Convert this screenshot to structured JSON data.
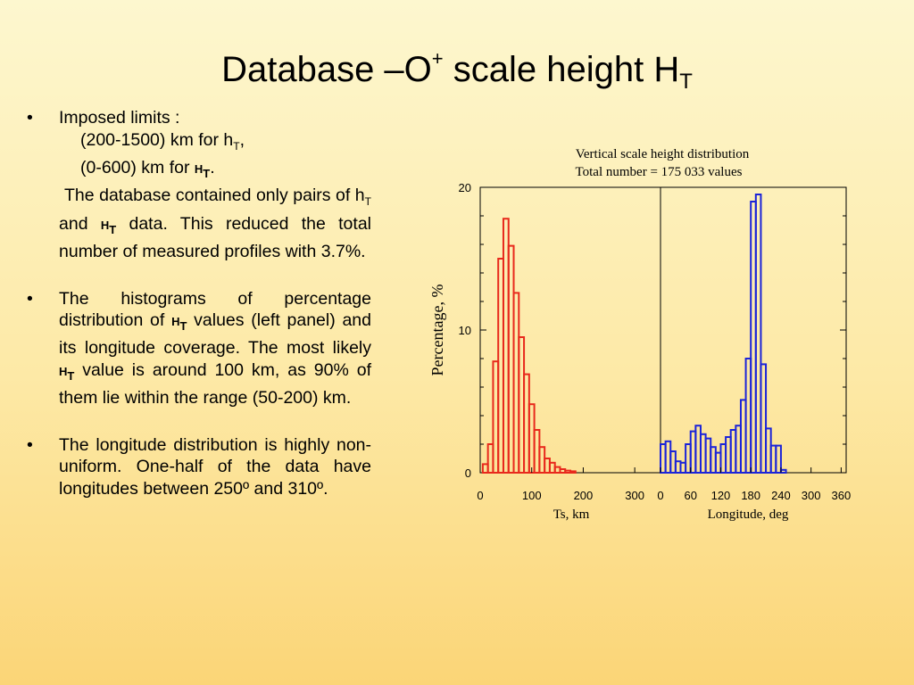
{
  "slide": {
    "title_main": "Database –O",
    "title_sup": "+",
    "title_rest": " scale height H",
    "title_sub": "T"
  },
  "bullets": {
    "b1_label": "Imposed limits :",
    "b1_l1a": "(200-1500) km for h",
    "b1_l1sub": "T",
    "b1_l1b": ",",
    "b1_l2a": "(0-600) km for ",
    "b1_l2b": "H",
    "b1_l2sub": "T",
    "b1_l2c": ".",
    "b1_p_a": "The database contained only pairs of h",
    "b1_p_sub1": "T",
    "b1_p_b": " and ",
    "b1_p_c": "H",
    "b1_p_sub2": "T",
    "b1_p_d": " data. This reduced the total number of measured profiles with 3.7%.",
    "b2_a": "The histograms of percentage distribution of ",
    "b2_b": "H",
    "b2_sub1": "T",
    "b2_c": " values (left panel) and its longitude coverage. The most likely ",
    "b2_d": "H",
    "b2_sub2": "T",
    "b2_e": " value is around 100 km, as 90% of them lie within the range (50-200) km.",
    "b3": "The longitude distribution is highly non-uniform. One-half of the data have longitudes between 250º and 310º.",
    "bullet_char": "•"
  },
  "chart_data": {
    "type": "bar",
    "title": "Vertical scale height distribution",
    "subtitle": "Total number = 175 033 values",
    "ylabel": "Percentage, %",
    "ylim": [
      0,
      20
    ],
    "yticks": [
      0,
      10,
      20
    ],
    "left_color": "#e8291c",
    "right_color": "#1c24d8",
    "panels": [
      {
        "name": "Ts",
        "xlabel": "Ts, km",
        "xlim": [
          0,
          350
        ],
        "xticks": [
          0,
          100,
          200,
          300
        ],
        "bin_width": 10,
        "bin_starts": [
          5,
          15,
          25,
          35,
          45,
          55,
          65,
          75,
          85,
          95,
          105,
          115,
          125,
          135,
          145,
          155,
          165,
          175,
          185,
          195,
          205,
          215,
          225,
          235,
          245,
          255,
          265,
          275,
          285,
          295,
          305,
          315,
          325
        ],
        "values": [
          0.6,
          2.0,
          7.8,
          15.0,
          17.8,
          15.9,
          12.6,
          9.5,
          6.9,
          4.8,
          3.0,
          1.8,
          1.0,
          0.7,
          0.4,
          0.25,
          0.15,
          0.1,
          0,
          0,
          0,
          0,
          0,
          0,
          0,
          0,
          0,
          0,
          0,
          0,
          0,
          0,
          0
        ]
      },
      {
        "name": "Longitude",
        "xlabel": "Longitude, deg",
        "xlim": [
          0,
          370
        ],
        "xticks": [
          0,
          60,
          120,
          180,
          240,
          300,
          360
        ],
        "bin_width": 10,
        "bin_starts": [
          0,
          10,
          20,
          30,
          40,
          50,
          60,
          70,
          80,
          90,
          100,
          110,
          120,
          130,
          140,
          150,
          160,
          170,
          180,
          190,
          200,
          210,
          220,
          230,
          240,
          250,
          260,
          270,
          280,
          290,
          300,
          310,
          320,
          330,
          340,
          350,
          360
        ],
        "values": [
          2.0,
          2.2,
          1.5,
          0.8,
          0.7,
          2.0,
          2.9,
          3.3,
          2.7,
          2.4,
          1.8,
          1.4,
          2.0,
          2.5,
          3.0,
          3.3,
          5.1,
          8.0,
          19.0,
          19.5,
          7.6,
          3.1,
          1.9,
          1.9,
          0.2,
          0,
          0,
          0,
          0,
          0,
          0,
          0,
          0,
          0,
          0,
          0,
          0
        ]
      }
    ]
  }
}
